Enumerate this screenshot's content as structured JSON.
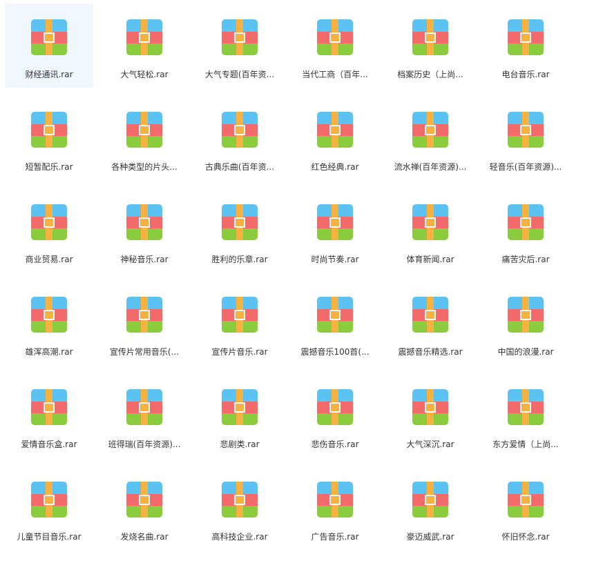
{
  "files": [
    {
      "name": "财经通讯.rar",
      "icon": "rar-archive-icon",
      "selected": true
    },
    {
      "name": "大气轻松.rar",
      "icon": "rar-archive-icon"
    },
    {
      "name": "大气专题(百年资...",
      "icon": "rar-archive-icon"
    },
    {
      "name": "当代工商（百年...",
      "icon": "rar-archive-icon"
    },
    {
      "name": "档案历史（上尚...",
      "icon": "rar-archive-icon"
    },
    {
      "name": "电台音乐.rar",
      "icon": "rar-archive-icon"
    },
    {
      "name": "短暂配乐.rar",
      "icon": "rar-archive-icon"
    },
    {
      "name": "各种类型的片头...",
      "icon": "rar-archive-icon"
    },
    {
      "name": "古典乐曲(百年资...",
      "icon": "rar-archive-icon"
    },
    {
      "name": "红色经典.rar",
      "icon": "rar-archive-icon"
    },
    {
      "name": "流水禅(百年资源)...",
      "icon": "rar-archive-icon"
    },
    {
      "name": "轻音乐(百年资源)...",
      "icon": "rar-archive-icon"
    },
    {
      "name": "商业贸易.rar",
      "icon": "rar-archive-icon"
    },
    {
      "name": "神秘音乐.rar",
      "icon": "rar-archive-icon"
    },
    {
      "name": "胜利的乐章.rar",
      "icon": "rar-archive-icon"
    },
    {
      "name": "时尚节奏.rar",
      "icon": "rar-archive-icon"
    },
    {
      "name": "体育新闻.rar",
      "icon": "rar-archive-icon"
    },
    {
      "name": "痛苦灾后.rar",
      "icon": "rar-archive-icon"
    },
    {
      "name": "雄浑高潮.rar",
      "icon": "rar-archive-icon"
    },
    {
      "name": "宣传片常用音乐(...",
      "icon": "rar-archive-icon"
    },
    {
      "name": "宣传片音乐.rar",
      "icon": "rar-archive-icon"
    },
    {
      "name": "震撼音乐100首(...",
      "icon": "rar-archive-icon"
    },
    {
      "name": "震撼音乐精选.rar",
      "icon": "rar-archive-icon"
    },
    {
      "name": "中国的浪漫.rar",
      "icon": "rar-archive-icon"
    },
    {
      "name": "爱情音乐盒.rar",
      "icon": "rar-archive-icon"
    },
    {
      "name": "班得瑞(百年资源)...",
      "icon": "rar-archive-icon"
    },
    {
      "name": "悲剧类.rar",
      "icon": "rar-archive-icon"
    },
    {
      "name": "悲伤音乐.rar",
      "icon": "rar-archive-icon"
    },
    {
      "name": "大气深沉.rar",
      "icon": "rar-archive-icon"
    },
    {
      "name": "东方爱情（上尚...",
      "icon": "rar-archive-icon"
    },
    {
      "name": "儿童节目音乐.rar",
      "icon": "rar-archive-icon"
    },
    {
      "name": "发烧名曲.rar",
      "icon": "rar-archive-icon"
    },
    {
      "name": "高科技企业.rar",
      "icon": "rar-archive-icon"
    },
    {
      "name": "广告音乐.rar",
      "icon": "rar-archive-icon"
    },
    {
      "name": "豪迈威武.rar",
      "icon": "rar-archive-icon"
    },
    {
      "name": "怀旧怀念.rar",
      "icon": "rar-archive-icon"
    }
  ],
  "colors": {
    "selection_background": "#f0f7ff",
    "icon_top": "#5bc2f2",
    "icon_middle": "#f26a6a",
    "icon_bottom": "#8acc3e",
    "icon_strap": "#f6b240",
    "label_text": "#333333"
  }
}
